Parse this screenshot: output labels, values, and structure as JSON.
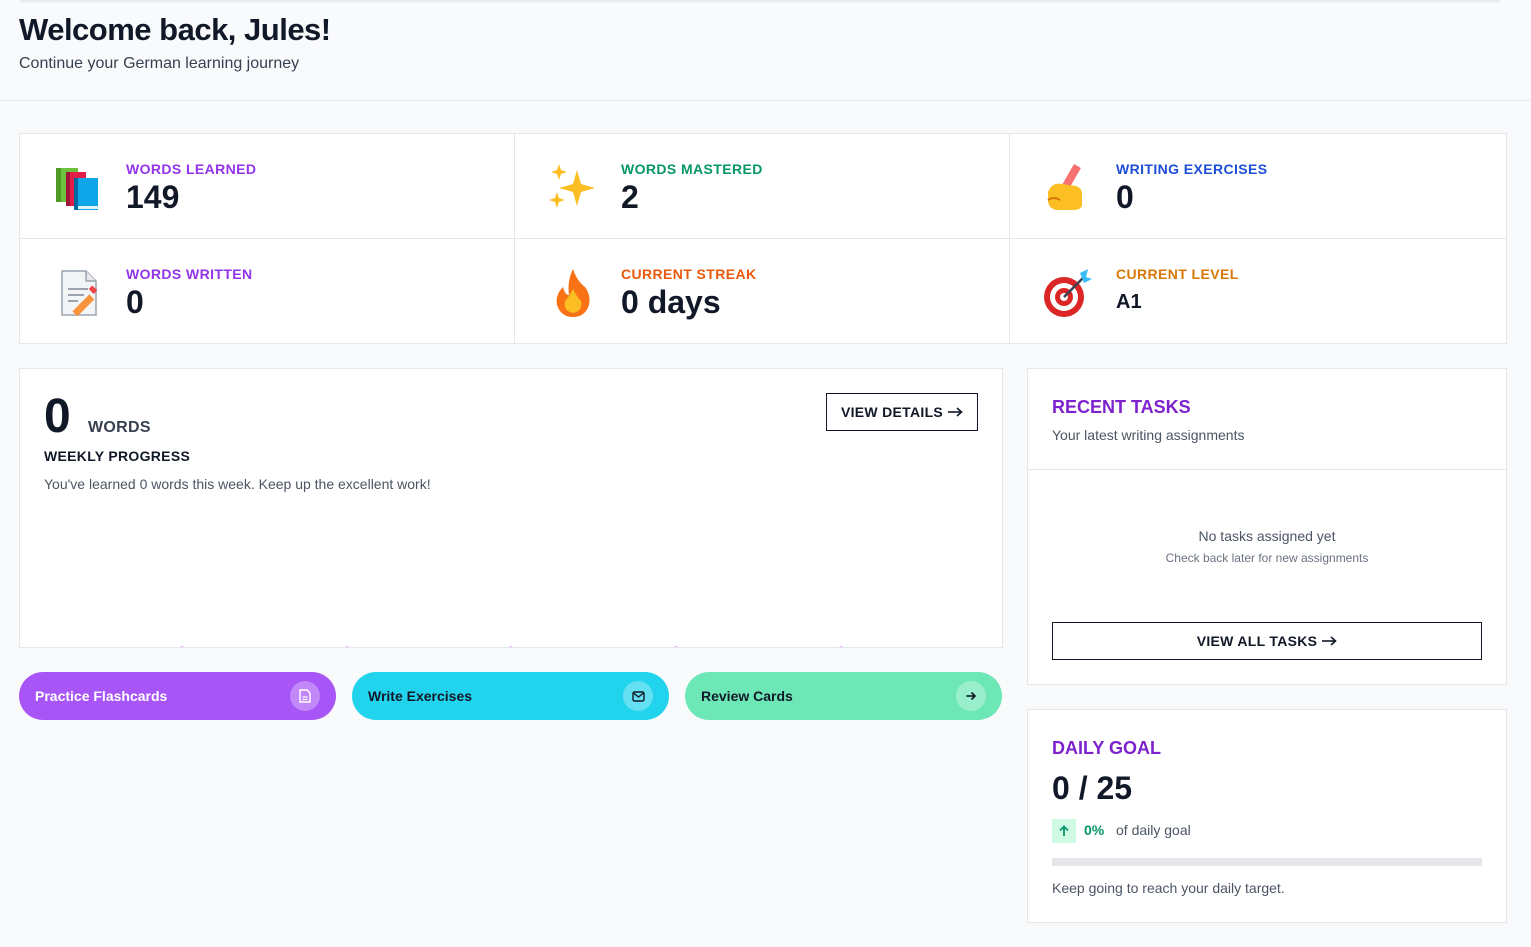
{
  "header": {
    "title": "Welcome back, Jules!",
    "subtitle": "Continue your German learning journey"
  },
  "stats": [
    {
      "label": "WORDS LEARNED",
      "value": "149",
      "icon": "books-icon",
      "color": "#7e22ce"
    },
    {
      "label": "WORDS MASTERED",
      "value": "2",
      "icon": "sparkles-icon",
      "color": "#059669"
    },
    {
      "label": "WRITING EXERCISES",
      "value": "0",
      "icon": "writing-hand-icon",
      "color": "#1d4ed8"
    },
    {
      "label": "WORDS WRITTEN",
      "value": "0",
      "icon": "memo-icon",
      "color": "#9333ea"
    },
    {
      "label": "CURRENT STREAK",
      "value": "0 days",
      "icon": "fire-icon",
      "color": "#ea580c"
    },
    {
      "label": "CURRENT LEVEL",
      "value": "A1",
      "icon": "target-icon",
      "color": "#d97706"
    }
  ],
  "weekly": {
    "count": "0",
    "unit": "WORDS",
    "label": "WEEKLY PROGRESS",
    "text": "You've learned 0 words this week. Keep up the excellent work!",
    "view_details": "VIEW DETAILS"
  },
  "chart_data": {
    "type": "line",
    "values": [
      0,
      0,
      0,
      0,
      0
    ],
    "color": "#d946ef"
  },
  "actions": [
    {
      "label": "Practice Flashcards",
      "icon": "document-icon"
    },
    {
      "label": "Write Exercises",
      "icon": "mail-icon"
    },
    {
      "label": "Review Cards",
      "icon": "arrow-right-icon"
    }
  ],
  "tasks": {
    "title": "RECENT TASKS",
    "subtitle": "Your latest writing assignments",
    "empty": "No tasks assigned yet",
    "empty_sub": "Check back later for new assignments",
    "view_all": "VIEW ALL TASKS"
  },
  "goal": {
    "title": "DAILY GOAL",
    "value": "0 / 25",
    "percent": "0%",
    "progress": 0,
    "of_text": "of daily goal",
    "note": "Keep going to reach your daily target."
  }
}
